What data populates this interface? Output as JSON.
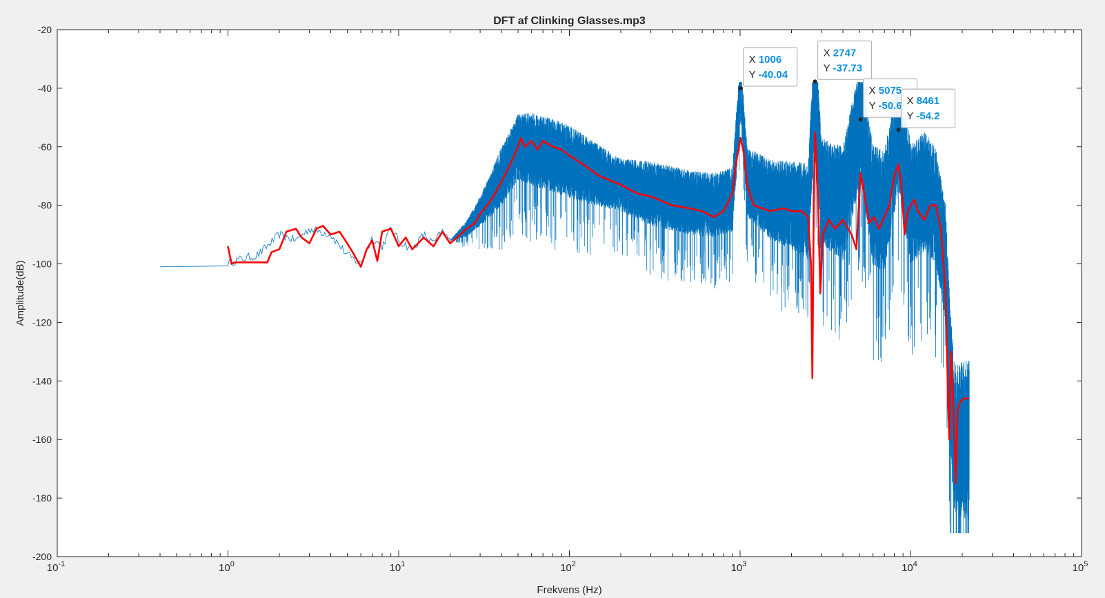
{
  "chart_data": {
    "type": "line",
    "title": "DFT af Clinking Glasses.mp3",
    "xlabel": "Frekvens (Hz)",
    "ylabel": "Amplitude(dB)",
    "xscale": "log",
    "xlim": [
      0.1,
      100000
    ],
    "ylim": [
      -200,
      -20
    ],
    "grid": false,
    "x_ticks": [
      {
        "value": 0.1,
        "base": "10",
        "exp": "-1"
      },
      {
        "value": 1,
        "base": "10",
        "exp": "0"
      },
      {
        "value": 10,
        "base": "10",
        "exp": "1"
      },
      {
        "value": 100,
        "base": "10",
        "exp": "2"
      },
      {
        "value": 1000,
        "base": "10",
        "exp": "3"
      },
      {
        "value": 10000,
        "base": "10",
        "exp": "4"
      },
      {
        "value": 100000,
        "base": "10",
        "exp": "5"
      }
    ],
    "y_ticks": [
      {
        "value": -20,
        "label": "-20"
      },
      {
        "value": -40,
        "label": "-40"
      },
      {
        "value": -60,
        "label": "-60"
      },
      {
        "value": -80,
        "label": "-80"
      },
      {
        "value": -100,
        "label": "-100"
      },
      {
        "value": -120,
        "label": "-120"
      },
      {
        "value": -140,
        "label": "-140"
      },
      {
        "value": -160,
        "label": "-160"
      },
      {
        "value": -180,
        "label": "-180"
      },
      {
        "value": -200,
        "label": "-200"
      }
    ],
    "series": [
      {
        "color": "#0072bd",
        "kind": "raw-spectrum",
        "points": [
          [
            0.4,
            -101
          ],
          [
            1,
            -99.5
          ],
          [
            1.5,
            -97
          ],
          [
            2,
            -90
          ],
          [
            2.5,
            -92
          ],
          [
            3,
            -88
          ],
          [
            3.5,
            -89
          ],
          [
            4,
            -90
          ],
          [
            5,
            -97
          ],
          [
            6,
            -100
          ],
          [
            7,
            -91
          ],
          [
            8,
            -94
          ],
          [
            9,
            -88
          ],
          [
            10,
            -92
          ],
          [
            12,
            -95
          ],
          [
            14,
            -90
          ],
          [
            16,
            -93
          ],
          [
            18,
            -89
          ],
          [
            20,
            -92
          ],
          [
            25,
            -88
          ],
          [
            30,
            -82
          ],
          [
            35,
            -76
          ],
          [
            40,
            -70
          ],
          [
            45,
            -65
          ],
          [
            50,
            -60
          ],
          [
            60,
            -61
          ],
          [
            70,
            -62
          ],
          [
            80,
            -63
          ],
          [
            100,
            -65
          ],
          [
            150,
            -70
          ],
          [
            200,
            -73
          ],
          [
            300,
            -76
          ],
          [
            500,
            -79
          ],
          [
            700,
            -80
          ],
          [
            900,
            -78
          ],
          [
            1006,
            -40.04
          ],
          [
            1100,
            -72
          ],
          [
            1500,
            -78
          ],
          [
            2000,
            -80
          ],
          [
            2500,
            -82
          ],
          [
            2747,
            -37.73
          ],
          [
            3000,
            -75
          ],
          [
            4000,
            -80
          ],
          [
            5075,
            -50.66
          ],
          [
            6000,
            -80
          ],
          [
            7000,
            -82
          ],
          [
            8461,
            -54.2
          ],
          [
            10000,
            -80
          ],
          [
            12000,
            -75
          ],
          [
            14000,
            -80
          ],
          [
            16000,
            -100
          ],
          [
            17000,
            -140
          ],
          [
            18000,
            -160
          ],
          [
            20000,
            -160
          ],
          [
            22000,
            -160
          ]
        ],
        "noise": [
          [
            0.4,
            0
          ],
          [
            20,
            0
          ],
          [
            30,
            10
          ],
          [
            40,
            20
          ],
          [
            60,
            25
          ],
          [
            100,
            25
          ],
          [
            200,
            18
          ],
          [
            300,
            22
          ],
          [
            500,
            22
          ],
          [
            900,
            22
          ],
          [
            2000,
            30
          ],
          [
            4000,
            40
          ],
          [
            10000,
            42
          ],
          [
            14000,
            40
          ],
          [
            16000,
            40
          ],
          [
            17000,
            50
          ],
          [
            22000,
            55
          ]
        ]
      },
      {
        "color": "#ff0000",
        "kind": "smoothed",
        "points": [
          [
            1,
            -94
          ],
          [
            1.05,
            -100
          ],
          [
            1.1,
            -99.5
          ],
          [
            1.5,
            -99.5
          ],
          [
            1.7,
            -99.5
          ],
          [
            1.8,
            -96
          ],
          [
            2,
            -95
          ],
          [
            2.2,
            -89
          ],
          [
            2.5,
            -88
          ],
          [
            2.7,
            -91
          ],
          [
            3,
            -93
          ],
          [
            3.3,
            -88
          ],
          [
            3.6,
            -87
          ],
          [
            4,
            -90
          ],
          [
            4.5,
            -89
          ],
          [
            5,
            -93
          ],
          [
            5.5,
            -97
          ],
          [
            6,
            -101
          ],
          [
            6.5,
            -95
          ],
          [
            7,
            -92
          ],
          [
            7.5,
            -99
          ],
          [
            8,
            -89
          ],
          [
            9,
            -88
          ],
          [
            10,
            -94
          ],
          [
            11,
            -91
          ],
          [
            12,
            -95
          ],
          [
            13,
            -93
          ],
          [
            14,
            -91
          ],
          [
            16,
            -94
          ],
          [
            18,
            -89
          ],
          [
            20,
            -93
          ],
          [
            22,
            -91
          ],
          [
            25,
            -88
          ],
          [
            28,
            -86
          ],
          [
            30,
            -83
          ],
          [
            35,
            -78
          ],
          [
            40,
            -72
          ],
          [
            45,
            -66
          ],
          [
            50,
            -60
          ],
          [
            52,
            -57
          ],
          [
            55,
            -60
          ],
          [
            60,
            -58
          ],
          [
            65,
            -61
          ],
          [
            70,
            -58
          ],
          [
            80,
            -60
          ],
          [
            90,
            -61
          ],
          [
            100,
            -63
          ],
          [
            120,
            -66
          ],
          [
            150,
            -70
          ],
          [
            200,
            -73
          ],
          [
            250,
            -76
          ],
          [
            300,
            -77
          ],
          [
            400,
            -80
          ],
          [
            500,
            -81
          ],
          [
            600,
            -82
          ],
          [
            700,
            -84
          ],
          [
            800,
            -82
          ],
          [
            900,
            -76
          ],
          [
            950,
            -65
          ],
          [
            1006,
            -57
          ],
          [
            1050,
            -62
          ],
          [
            1100,
            -73
          ],
          [
            1200,
            -80
          ],
          [
            1500,
            -82
          ],
          [
            1800,
            -81
          ],
          [
            2000,
            -82
          ],
          [
            2300,
            -82
          ],
          [
            2500,
            -84
          ],
          [
            2600,
            -100
          ],
          [
            2650,
            -139
          ],
          [
            2700,
            -80
          ],
          [
            2747,
            -55
          ],
          [
            2850,
            -75
          ],
          [
            2950,
            -110
          ],
          [
            3050,
            -90
          ],
          [
            3300,
            -85
          ],
          [
            3600,
            -88
          ],
          [
            4000,
            -85
          ],
          [
            4500,
            -90
          ],
          [
            4800,
            -95
          ],
          [
            5075,
            -69
          ],
          [
            5300,
            -75
          ],
          [
            5700,
            -86
          ],
          [
            6100,
            -84
          ],
          [
            6500,
            -88
          ],
          [
            7000,
            -84
          ],
          [
            7500,
            -80
          ],
          [
            8000,
            -70
          ],
          [
            8461,
            -66
          ],
          [
            8800,
            -73
          ],
          [
            9200,
            -90
          ],
          [
            9600,
            -82
          ],
          [
            10000,
            -80
          ],
          [
            10500,
            -78
          ],
          [
            11000,
            -82
          ],
          [
            12000,
            -85
          ],
          [
            13000,
            -80
          ],
          [
            14000,
            -80
          ],
          [
            15000,
            -88
          ],
          [
            16000,
            -110
          ],
          [
            16500,
            -145
          ],
          [
            16800,
            -160
          ],
          [
            17200,
            -130
          ],
          [
            17800,
            -150
          ],
          [
            18300,
            -175
          ],
          [
            18800,
            -150
          ],
          [
            19500,
            -147
          ],
          [
            20500,
            -146
          ],
          [
            22000,
            -146
          ]
        ]
      }
    ],
    "data_tips": [
      {
        "x_label": "X",
        "x_value": "1006",
        "y_label": "Y",
        "y_value": "-40.04",
        "x": 1006,
        "y": -40.04
      },
      {
        "x_label": "X",
        "x_value": "2747",
        "y_label": "Y",
        "y_value": "-37.73",
        "x": 2747,
        "y": -37.73
      },
      {
        "x_label": "X",
        "x_value": "5075",
        "y_label": "Y",
        "y_value": "-50.66",
        "x": 5075,
        "y": -50.66
      },
      {
        "x_label": "X",
        "x_value": "8461",
        "y_label": "Y",
        "y_value": "-54.2",
        "x": 8461,
        "y": -54.2
      }
    ]
  },
  "colors": {
    "figure_bg": "#f0f0f0",
    "axes_bg": "#ffffff",
    "axis": "#262626",
    "tip_value": "#0a8fe0"
  }
}
